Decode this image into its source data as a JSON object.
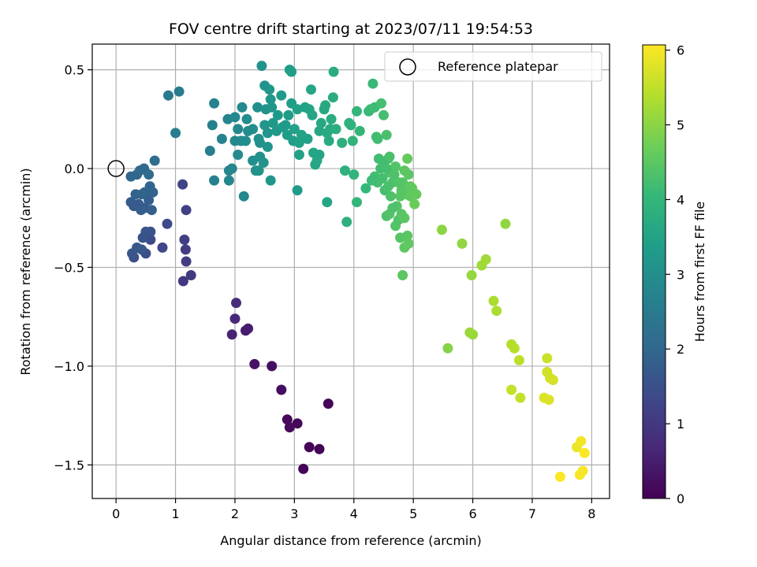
{
  "chart_data": {
    "type": "scatter",
    "title": "FOV centre drift starting at 2023/07/11 19:54:53",
    "xlabel": "Angular distance from reference (arcmin)",
    "ylabel": "Rotation from reference (arcmin)",
    "colorbar_label": "Hours from first FF file",
    "xlim": [
      -0.4,
      8.3
    ],
    "ylim": [
      -1.67,
      0.63
    ],
    "clim": [
      0,
      6.07
    ],
    "xticks": [
      0,
      1,
      2,
      3,
      4,
      5,
      6,
      7,
      8
    ],
    "xtick_labels": [
      "0",
      "1",
      "2",
      "3",
      "4",
      "5",
      "6",
      "7",
      "8"
    ],
    "yticks": [
      0.5,
      0.0,
      -0.5,
      -1.0,
      -1.5
    ],
    "ytick_labels": [
      "0.5",
      "0.0",
      "−0.5",
      "−1.0",
      "−1.5"
    ],
    "cticks": [
      0,
      1,
      2,
      3,
      4,
      5,
      6
    ],
    "ctick_labels": [
      "0",
      "1",
      "2",
      "3",
      "4",
      "5",
      "6"
    ],
    "grid": true,
    "legend": {
      "position": "top-right",
      "entries": [
        "Reference platepar"
      ]
    },
    "reference_point": {
      "x": 0.0,
      "y": 0.0
    },
    "colormap": "viridis",
    "points": [
      [
        3.15,
        -1.52,
        0.05
      ],
      [
        3.42,
        -1.42,
        0.05
      ],
      [
        3.25,
        -1.41,
        0.06
      ],
      [
        3.05,
        -1.29,
        0.1
      ],
      [
        2.88,
        -1.27,
        0.12
      ],
      [
        2.92,
        -1.31,
        0.15
      ],
      [
        3.57,
        -1.19,
        0.1
      ],
      [
        2.78,
        -1.12,
        0.2
      ],
      [
        2.62,
        -1.0,
        0.25
      ],
      [
        2.33,
        -0.99,
        0.3
      ],
      [
        2.18,
        -0.82,
        0.45
      ],
      [
        2.22,
        -0.81,
        0.5
      ],
      [
        1.95,
        -0.84,
        0.6
      ],
      [
        2.0,
        -0.76,
        0.7
      ],
      [
        2.02,
        -0.68,
        0.75
      ],
      [
        1.13,
        -0.57,
        1.0
      ],
      [
        1.26,
        -0.54,
        1.05
      ],
      [
        1.18,
        -0.47,
        1.1
      ],
      [
        1.17,
        -0.41,
        1.1
      ],
      [
        1.15,
        -0.36,
        1.15
      ],
      [
        1.18,
        -0.21,
        1.2
      ],
      [
        1.12,
        -0.08,
        1.25
      ],
      [
        0.78,
        -0.4,
        1.3
      ],
      [
        0.86,
        -0.28,
        1.35
      ],
      [
        0.58,
        -0.36,
        1.4
      ],
      [
        0.5,
        -0.43,
        1.5
      ],
      [
        0.3,
        -0.45,
        1.5
      ],
      [
        0.35,
        -0.4,
        1.6
      ],
      [
        0.43,
        -0.41,
        1.65
      ],
      [
        0.27,
        -0.43,
        1.6
      ],
      [
        0.58,
        -0.32,
        1.55
      ],
      [
        0.5,
        -0.32,
        1.6
      ],
      [
        0.45,
        -0.35,
        1.55
      ],
      [
        0.48,
        -0.2,
        1.7
      ],
      [
        0.38,
        -0.18,
        1.75
      ],
      [
        0.3,
        -0.19,
        1.7
      ],
      [
        0.25,
        -0.17,
        1.75
      ],
      [
        0.42,
        -0.21,
        1.8
      ],
      [
        0.55,
        -0.16,
        1.8
      ],
      [
        0.6,
        -0.21,
        1.85
      ],
      [
        0.48,
        -0.12,
        1.85
      ],
      [
        0.33,
        -0.13,
        1.9
      ],
      [
        0.62,
        -0.12,
        1.9
      ],
      [
        0.43,
        -0.13,
        1.95
      ],
      [
        0.57,
        -0.09,
        1.95
      ],
      [
        0.25,
        -0.04,
        2.0
      ],
      [
        0.35,
        -0.03,
        2.0
      ],
      [
        0.4,
        -0.01,
        2.05
      ],
      [
        0.47,
        0.0,
        2.05
      ],
      [
        0.55,
        -0.03,
        2.1
      ],
      [
        0.65,
        0.04,
        2.2
      ],
      [
        0.88,
        0.37,
        2.5
      ],
      [
        1.06,
        0.39,
        2.55
      ],
      [
        1.0,
        0.18,
        2.6
      ],
      [
        1.58,
        0.09,
        2.6
      ],
      [
        1.62,
        0.22,
        2.65
      ],
      [
        1.65,
        0.33,
        2.7
      ],
      [
        1.65,
        -0.06,
        2.65
      ],
      [
        1.78,
        0.15,
        2.7
      ],
      [
        1.88,
        0.25,
        2.75
      ],
      [
        1.9,
        -0.01,
        2.75
      ],
      [
        1.9,
        -0.06,
        2.8
      ],
      [
        1.95,
        0.0,
        2.8
      ],
      [
        2.0,
        0.26,
        2.85
      ],
      [
        2.05,
        0.2,
        2.85
      ],
      [
        2.0,
        0.14,
        2.85
      ],
      [
        2.05,
        0.07,
        2.9
      ],
      [
        2.1,
        0.14,
        2.9
      ],
      [
        2.12,
        0.31,
        2.9
      ],
      [
        2.2,
        0.25,
        2.95
      ],
      [
        2.18,
        0.14,
        2.95
      ],
      [
        2.15,
        -0.14,
        2.85
      ],
      [
        2.3,
        0.2,
        3.0
      ],
      [
        2.38,
        0.31,
        3.0
      ],
      [
        2.4,
        0.15,
        3.05
      ],
      [
        2.42,
        0.13,
        3.05
      ],
      [
        2.45,
        0.52,
        3.1
      ],
      [
        2.5,
        0.42,
        3.1
      ],
      [
        2.52,
        0.3,
        3.1
      ],
      [
        2.5,
        0.22,
        3.15
      ],
      [
        2.55,
        0.18,
        3.15
      ],
      [
        2.58,
        0.4,
        3.2
      ],
      [
        2.6,
        0.35,
        3.2
      ],
      [
        2.62,
        0.31,
        3.2
      ],
      [
        2.64,
        0.23,
        3.25
      ],
      [
        2.7,
        0.19,
        3.25
      ],
      [
        2.72,
        0.27,
        3.25
      ],
      [
        2.78,
        0.37,
        3.3
      ],
      [
        2.8,
        0.21,
        3.3
      ],
      [
        2.85,
        0.22,
        3.3
      ],
      [
        2.88,
        0.17,
        3.35
      ],
      [
        2.9,
        0.27,
        3.35
      ],
      [
        2.92,
        0.5,
        3.35
      ],
      [
        2.95,
        0.49,
        3.4
      ],
      [
        2.95,
        0.33,
        3.4
      ],
      [
        2.98,
        0.14,
        3.4
      ],
      [
        3.0,
        0.2,
        3.45
      ],
      [
        3.05,
        0.3,
        3.45
      ],
      [
        3.08,
        0.13,
        3.45
      ],
      [
        3.12,
        0.17,
        3.5
      ],
      [
        3.18,
        0.31,
        3.5
      ],
      [
        3.25,
        0.3,
        3.5
      ],
      [
        3.28,
        0.4,
        3.55
      ],
      [
        3.3,
        0.27,
        3.55
      ],
      [
        3.32,
        0.08,
        3.55
      ],
      [
        3.35,
        0.02,
        3.6
      ],
      [
        3.38,
        0.04,
        3.6
      ],
      [
        3.42,
        0.19,
        3.6
      ],
      [
        3.45,
        0.23,
        3.65
      ],
      [
        3.5,
        0.3,
        3.65
      ],
      [
        3.52,
        0.32,
        3.65
      ],
      [
        3.55,
        0.18,
        3.7
      ],
      [
        3.58,
        0.14,
        3.7
      ],
      [
        3.6,
        0.2,
        3.7
      ],
      [
        3.62,
        0.25,
        3.75
      ],
      [
        3.65,
        0.36,
        3.75
      ],
      [
        3.66,
        0.49,
        3.75
      ],
      [
        3.7,
        0.2,
        3.8
      ],
      [
        3.8,
        0.13,
        3.8
      ],
      [
        3.85,
        -0.01,
        3.85
      ],
      [
        3.88,
        -0.27,
        3.85
      ],
      [
        3.92,
        0.23,
        3.9
      ],
      [
        3.95,
        0.22,
        3.9
      ],
      [
        3.98,
        0.14,
        3.95
      ],
      [
        4.0,
        -0.03,
        3.95
      ],
      [
        4.05,
        -0.17,
        4.0
      ],
      [
        4.05,
        0.29,
        4.0
      ],
      [
        4.1,
        0.19,
        4.0
      ],
      [
        2.3,
        0.04,
        3.0
      ],
      [
        2.35,
        -0.01,
        3.05
      ],
      [
        2.4,
        -0.01,
        3.1
      ],
      [
        2.42,
        0.06,
        3.05
      ],
      [
        2.48,
        0.03,
        3.1
      ],
      [
        2.55,
        0.11,
        3.15
      ],
      [
        2.6,
        -0.06,
        3.15
      ],
      [
        2.22,
        0.19,
        2.95
      ],
      [
        3.05,
        -0.11,
        3.3
      ],
      [
        3.55,
        -0.17,
        3.6
      ],
      [
        3.42,
        0.07,
        3.55
      ],
      [
        3.08,
        0.07,
        3.45
      ],
      [
        3.22,
        0.15,
        3.45
      ],
      [
        4.2,
        -0.1,
        4.05
      ],
      [
        4.25,
        0.29,
        4.05
      ],
      [
        4.28,
        0.3,
        4.1
      ],
      [
        4.32,
        0.43,
        4.1
      ],
      [
        4.35,
        0.31,
        4.15
      ],
      [
        4.38,
        0.16,
        4.15
      ],
      [
        4.4,
        0.15,
        4.2
      ],
      [
        4.45,
        0.0,
        4.2
      ],
      [
        4.46,
        0.33,
        4.25
      ],
      [
        4.5,
        0.27,
        4.25
      ],
      [
        4.52,
        -0.11,
        4.25
      ],
      [
        4.55,
        0.17,
        4.3
      ],
      [
        4.58,
        0.05,
        4.3
      ],
      [
        4.6,
        -0.02,
        4.3
      ],
      [
        4.62,
        -0.01,
        4.35
      ],
      [
        4.65,
        -0.07,
        4.35
      ],
      [
        4.68,
        -0.03,
        4.35
      ],
      [
        4.7,
        0.01,
        4.4
      ],
      [
        4.72,
        -0.19,
        4.4
      ],
      [
        4.75,
        -0.26,
        4.4
      ],
      [
        4.78,
        -0.14,
        4.45
      ],
      [
        4.8,
        -0.23,
        4.45
      ],
      [
        4.82,
        -0.07,
        4.45
      ],
      [
        4.85,
        -0.01,
        4.5
      ],
      [
        4.88,
        -0.13,
        4.5
      ],
      [
        4.9,
        -0.34,
        4.5
      ],
      [
        4.92,
        -0.38,
        4.55
      ],
      [
        4.95,
        -0.14,
        4.55
      ],
      [
        4.98,
        -0.1,
        4.6
      ],
      [
        5.0,
        -0.12,
        4.6
      ],
      [
        5.02,
        -0.18,
        4.65
      ],
      [
        5.05,
        -0.13,
        4.6
      ],
      [
        4.9,
        0.05,
        4.6
      ],
      [
        4.85,
        -0.4,
        4.55
      ],
      [
        4.82,
        -0.54,
        4.5
      ],
      [
        4.55,
        -0.24,
        4.35
      ],
      [
        4.6,
        -0.23,
        4.4
      ],
      [
        4.65,
        -0.2,
        4.35
      ],
      [
        4.7,
        -0.29,
        4.4
      ],
      [
        4.78,
        -0.35,
        4.45
      ],
      [
        4.75,
        -0.07,
        4.4
      ],
      [
        4.5,
        0.03,
        4.2
      ],
      [
        4.4,
        -0.07,
        4.25
      ],
      [
        4.35,
        -0.04,
        4.2
      ],
      [
        4.3,
        -0.06,
        4.15
      ],
      [
        4.42,
        0.05,
        4.2
      ],
      [
        4.55,
        0.0,
        4.25
      ],
      [
        4.6,
        0.06,
        4.3
      ],
      [
        4.48,
        -0.05,
        4.25
      ],
      [
        4.58,
        -0.09,
        4.3
      ],
      [
        4.62,
        -0.14,
        4.35
      ],
      [
        4.8,
        -0.11,
        4.45
      ],
      [
        4.85,
        -0.25,
        4.5
      ],
      [
        4.95,
        -0.09,
        4.55
      ],
      [
        4.92,
        -0.03,
        4.5
      ],
      [
        5.48,
        -0.31,
        5.0
      ],
      [
        5.82,
        -0.38,
        5.05
      ],
      [
        5.58,
        -0.91,
        4.95
      ],
      [
        5.98,
        -0.54,
        5.1
      ],
      [
        5.95,
        -0.83,
        5.15
      ],
      [
        6.0,
        -0.84,
        5.15
      ],
      [
        6.15,
        -0.49,
        5.2
      ],
      [
        6.22,
        -0.46,
        5.2
      ],
      [
        6.55,
        -0.28,
        5.05
      ],
      [
        6.35,
        -0.67,
        5.3
      ],
      [
        6.4,
        -0.72,
        5.3
      ],
      [
        6.65,
        -0.89,
        5.4
      ],
      [
        6.7,
        -0.91,
        5.4
      ],
      [
        6.78,
        -0.97,
        5.45
      ],
      [
        6.65,
        -1.12,
        5.55
      ],
      [
        6.8,
        -1.16,
        5.55
      ],
      [
        7.25,
        -0.96,
        5.6
      ],
      [
        7.25,
        -1.03,
        5.65
      ],
      [
        7.3,
        -1.06,
        5.65
      ],
      [
        7.35,
        -1.07,
        5.7
      ],
      [
        7.2,
        -1.16,
        5.75
      ],
      [
        7.28,
        -1.17,
        5.75
      ],
      [
        7.75,
        -1.41,
        5.9
      ],
      [
        7.82,
        -1.38,
        5.95
      ],
      [
        7.85,
        -1.53,
        6.0
      ],
      [
        7.8,
        -1.55,
        6.0
      ],
      [
        7.88,
        -1.44,
        6.05
      ],
      [
        7.47,
        -1.56,
        6.05
      ]
    ]
  }
}
